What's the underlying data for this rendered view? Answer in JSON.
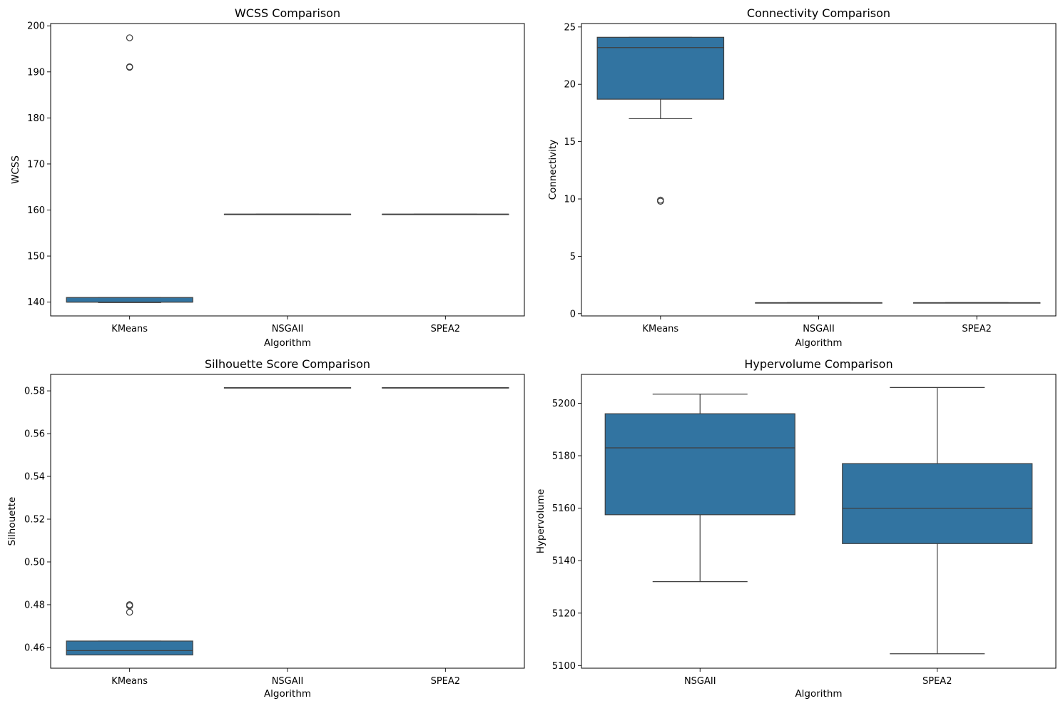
{
  "chart_data": [
    {
      "type": "box",
      "title": "WCSS Comparison",
      "xlabel": "Algorithm",
      "ylabel": "WCSS",
      "categories": [
        "KMeans",
        "NSGAII",
        "SPEA2"
      ],
      "ylim": [
        137,
        200.5
      ],
      "yticks": [
        140,
        150,
        160,
        170,
        180,
        190,
        200
      ],
      "ytick_labels": [
        "140",
        "150",
        "160",
        "170",
        "180",
        "190",
        "200"
      ],
      "box_color": "#3274a1",
      "boxes": [
        {
          "category": "KMeans",
          "whislo": 139.9,
          "q1": 140.0,
          "median": 140.0,
          "q3": 141.0,
          "whishi": 141.0,
          "fliers": [
            191.0,
            191.1,
            197.4
          ]
        },
        {
          "category": "NSGAII",
          "whislo": 159.1,
          "q1": 159.1,
          "median": 159.1,
          "q3": 159.1,
          "whishi": 159.1,
          "fliers": []
        },
        {
          "category": "SPEA2",
          "whislo": 159.1,
          "q1": 159.1,
          "median": 159.1,
          "q3": 159.1,
          "whishi": 159.1,
          "fliers": []
        }
      ]
    },
    {
      "type": "box",
      "title": "Connectivity Comparison",
      "xlabel": "Algorithm",
      "ylabel": "Connectivity",
      "categories": [
        "KMeans",
        "NSGAII",
        "SPEA2"
      ],
      "ylim": [
        -0.2,
        25.3
      ],
      "yticks": [
        0,
        5,
        10,
        15,
        20,
        25
      ],
      "ytick_labels": [
        "0",
        "5",
        "10",
        "15",
        "20",
        "25"
      ],
      "box_color": "#3274a1",
      "boxes": [
        {
          "category": "KMeans",
          "whislo": 17.0,
          "q1": 18.7,
          "median": 23.2,
          "q3": 24.1,
          "whishi": 24.1,
          "fliers": [
            9.8,
            9.9
          ]
        },
        {
          "category": "NSGAII",
          "whislo": 0.95,
          "q1": 0.95,
          "median": 0.95,
          "q3": 0.95,
          "whishi": 0.95,
          "fliers": []
        },
        {
          "category": "SPEA2",
          "whislo": 0.95,
          "q1": 0.95,
          "median": 0.95,
          "q3": 0.95,
          "whishi": 0.95,
          "fliers": []
        }
      ]
    },
    {
      "type": "box",
      "title": "Silhouette Score Comparison",
      "xlabel": "Algorithm",
      "ylabel": "Silhouette",
      "categories": [
        "KMeans",
        "NSGAII",
        "SPEA2"
      ],
      "ylim": [
        0.4503,
        0.5877
      ],
      "yticks": [
        0.46,
        0.48,
        0.5,
        0.52,
        0.54,
        0.56,
        0.58
      ],
      "ytick_labels": [
        "0.46",
        "0.48",
        "0.50",
        "0.52",
        "0.54",
        "0.56",
        "0.58"
      ],
      "box_color": "#3274a1",
      "boxes": [
        {
          "category": "KMeans",
          "whislo": 0.4565,
          "q1": 0.4565,
          "median": 0.4585,
          "q3": 0.463,
          "whishi": 0.463,
          "fliers": [
            0.4765,
            0.4795,
            0.48
          ]
        },
        {
          "category": "NSGAII",
          "whislo": 0.5815,
          "q1": 0.5815,
          "median": 0.5815,
          "q3": 0.5815,
          "whishi": 0.5815,
          "fliers": []
        },
        {
          "category": "SPEA2",
          "whislo": 0.5815,
          "q1": 0.5815,
          "median": 0.5815,
          "q3": 0.5815,
          "whishi": 0.5815,
          "fliers": []
        }
      ]
    },
    {
      "type": "box",
      "title": "Hypervolume Comparison",
      "xlabel": "Algorithm",
      "ylabel": "Hypervolume",
      "categories": [
        "NSGAII",
        "SPEA2"
      ],
      "ylim": [
        5099,
        5211
      ],
      "yticks": [
        5100,
        5120,
        5140,
        5160,
        5180,
        5200
      ],
      "ytick_labels": [
        "5100",
        "5120",
        "5140",
        "5160",
        "5180",
        "5200"
      ],
      "box_color": "#3274a1",
      "boxes": [
        {
          "category": "NSGAII",
          "whislo": 5132,
          "q1": 5157.5,
          "median": 5183,
          "q3": 5196,
          "whishi": 5203.5,
          "fliers": []
        },
        {
          "category": "SPEA2",
          "whislo": 5104.5,
          "q1": 5146.5,
          "median": 5160,
          "q3": 5177,
          "whishi": 5206,
          "fliers": []
        }
      ]
    }
  ]
}
